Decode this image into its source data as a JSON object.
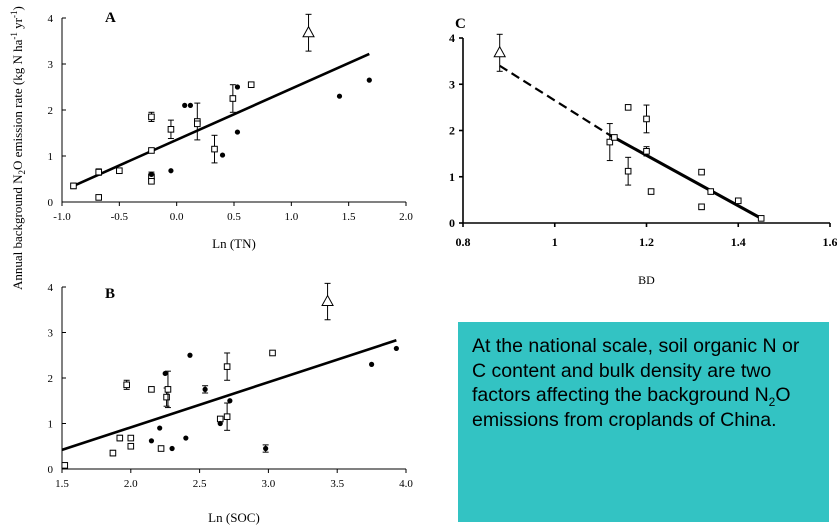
{
  "y_axis_label": "Annual background N",
  "y_axis_label_sub": "2",
  "y_axis_label_rest": "O emission rate (kg N ha",
  "y_axis_label_sup1": "-1",
  "y_axis_label_mid": " yr",
  "y_axis_label_sup2": "-1",
  "y_axis_label_end": ")",
  "info_box": {
    "text_before": "At the national scale, soil organic N or C content and bulk density are two factors affecting the background N",
    "subscript": "2",
    "text_after": "O emissions from croplands of China."
  },
  "chart_data": [
    {
      "panel": "A",
      "type": "scatter",
      "xlabel": "Ln (TN)",
      "xlim": [
        -1.0,
        2.0
      ],
      "ylim": [
        0,
        4
      ],
      "xticks": [
        "-1.0",
        "-0.5",
        "0.0",
        "0.5",
        "1.0",
        "1.5",
        "2.0"
      ],
      "yticks": [
        "0",
        "1",
        "2",
        "3",
        "4"
      ],
      "trend_line": [
        [
          -0.9,
          0.35
        ],
        [
          1.68,
          3.22
        ]
      ],
      "series": [
        {
          "marker": "open-square",
          "points": [
            {
              "x": -0.9,
              "y": 0.35,
              "err": 0.06
            },
            {
              "x": -0.68,
              "y": 0.65,
              "err": 0.07
            },
            {
              "x": -0.68,
              "y": 0.1
            },
            {
              "x": -0.5,
              "y": 0.68,
              "err": 0.05
            },
            {
              "x": -0.22,
              "y": 1.85,
              "err": 0.1
            },
            {
              "x": -0.22,
              "y": 1.12
            },
            {
              "x": -0.22,
              "y": 0.55,
              "err": 0.1
            },
            {
              "x": -0.22,
              "y": 0.45
            },
            {
              "x": -0.05,
              "y": 1.58,
              "err": 0.2
            },
            {
              "x": 0.18,
              "y": 1.75,
              "err": 0.4
            },
            {
              "x": 0.18,
              "y": 1.7
            },
            {
              "x": 0.33,
              "y": 1.15,
              "err": 0.3
            },
            {
              "x": 0.49,
              "y": 2.25,
              "err": 0.3
            },
            {
              "x": 0.65,
              "y": 2.55
            }
          ]
        },
        {
          "marker": "filled-circle",
          "points": [
            {
              "x": -0.22,
              "y": 0.6
            },
            {
              "x": -0.05,
              "y": 0.68
            },
            {
              "x": 0.07,
              "y": 2.1
            },
            {
              "x": 0.12,
              "y": 2.1
            },
            {
              "x": 0.4,
              "y": 1.02
            },
            {
              "x": 0.53,
              "y": 2.5
            },
            {
              "x": 0.53,
              "y": 1.52
            },
            {
              "x": 1.42,
              "y": 2.3
            },
            {
              "x": 1.68,
              "y": 2.65
            }
          ]
        },
        {
          "marker": "open-triangle",
          "points": [
            {
              "x": 1.15,
              "y": 3.68,
              "err": 0.4
            }
          ]
        }
      ]
    },
    {
      "panel": "B",
      "type": "scatter",
      "xlabel": "Ln (SOC)",
      "xlim": [
        1.5,
        4.0
      ],
      "ylim": [
        0,
        4
      ],
      "xticks": [
        "1.5",
        "2.0",
        "2.5",
        "3.0",
        "3.5",
        "4.0"
      ],
      "yticks": [
        "0",
        "1",
        "2",
        "3",
        "4"
      ],
      "trend_line": [
        [
          1.5,
          0.42
        ],
        [
          3.93,
          2.83
        ]
      ],
      "series": [
        {
          "marker": "open-square",
          "points": [
            {
              "x": 1.52,
              "y": 0.08
            },
            {
              "x": 1.87,
              "y": 0.35,
              "err": 0.06
            },
            {
              "x": 1.92,
              "y": 0.68,
              "err": 0.06
            },
            {
              "x": 1.97,
              "y": 1.85,
              "err": 0.1
            },
            {
              "x": 2.0,
              "y": 0.5
            },
            {
              "x": 2.0,
              "y": 0.68,
              "err": 0.05
            },
            {
              "x": 2.15,
              "y": 1.75,
              "err": 0.05
            },
            {
              "x": 2.22,
              "y": 0.45
            },
            {
              "x": 2.26,
              "y": 1.58,
              "err": 0.2
            },
            {
              "x": 2.27,
              "y": 1.75,
              "err": 0.4
            },
            {
              "x": 2.65,
              "y": 1.1
            },
            {
              "x": 2.7,
              "y": 2.25,
              "err": 0.3
            },
            {
              "x": 2.7,
              "y": 1.15,
              "err": 0.3
            },
            {
              "x": 3.03,
              "y": 2.55
            }
          ]
        },
        {
          "marker": "filled-circle",
          "points": [
            {
              "x": 2.15,
              "y": 0.62
            },
            {
              "x": 2.21,
              "y": 0.9
            },
            {
              "x": 2.25,
              "y": 2.1
            },
            {
              "x": 2.3,
              "y": 0.45
            },
            {
              "x": 2.4,
              "y": 0.68
            },
            {
              "x": 2.43,
              "y": 2.5
            },
            {
              "x": 2.54,
              "y": 1.75,
              "err": 0.08
            },
            {
              "x": 2.65,
              "y": 1.0
            },
            {
              "x": 2.72,
              "y": 1.5
            },
            {
              "x": 2.98,
              "y": 0.45,
              "err": 0.08
            },
            {
              "x": 3.75,
              "y": 2.3
            },
            {
              "x": 3.93,
              "y": 2.65
            }
          ]
        },
        {
          "marker": "open-triangle",
          "points": [
            {
              "x": 3.43,
              "y": 3.68,
              "err": 0.4
            }
          ]
        }
      ]
    },
    {
      "panel": "C",
      "type": "scatter",
      "xlabel": "BD",
      "xlim": [
        0.8,
        1.6
      ],
      "ylim": [
        0,
        4
      ],
      "xticks": [
        "0.8",
        "1",
        "1.2",
        "1.4",
        "1.6"
      ],
      "yticks": [
        "0",
        "1",
        "2",
        "3",
        "4"
      ],
      "trend_line_dashed": [
        [
          0.88,
          3.4
        ],
        [
          1.12,
          1.9
        ]
      ],
      "trend_line": [
        [
          1.12,
          1.9
        ],
        [
          1.45,
          0.1
        ]
      ],
      "series": [
        {
          "marker": "open-square",
          "points": [
            {
              "x": 1.12,
              "y": 1.75,
              "err": 0.4
            },
            {
              "x": 1.13,
              "y": 1.85
            },
            {
              "x": 1.16,
              "y": 2.5
            },
            {
              "x": 1.16,
              "y": 1.12,
              "err": 0.3
            },
            {
              "x": 1.2,
              "y": 2.25,
              "err": 0.3
            },
            {
              "x": 1.2,
              "y": 1.55,
              "err": 0.1
            },
            {
              "x": 1.21,
              "y": 0.68,
              "err": 0.05
            },
            {
              "x": 1.32,
              "y": 1.1
            },
            {
              "x": 1.32,
              "y": 0.35,
              "err": 0.06
            },
            {
              "x": 1.34,
              "y": 0.68
            },
            {
              "x": 1.4,
              "y": 0.48
            },
            {
              "x": 1.45,
              "y": 0.1
            }
          ]
        },
        {
          "marker": "open-triangle",
          "points": [
            {
              "x": 0.88,
              "y": 3.68,
              "err": 0.4
            }
          ]
        }
      ]
    }
  ]
}
